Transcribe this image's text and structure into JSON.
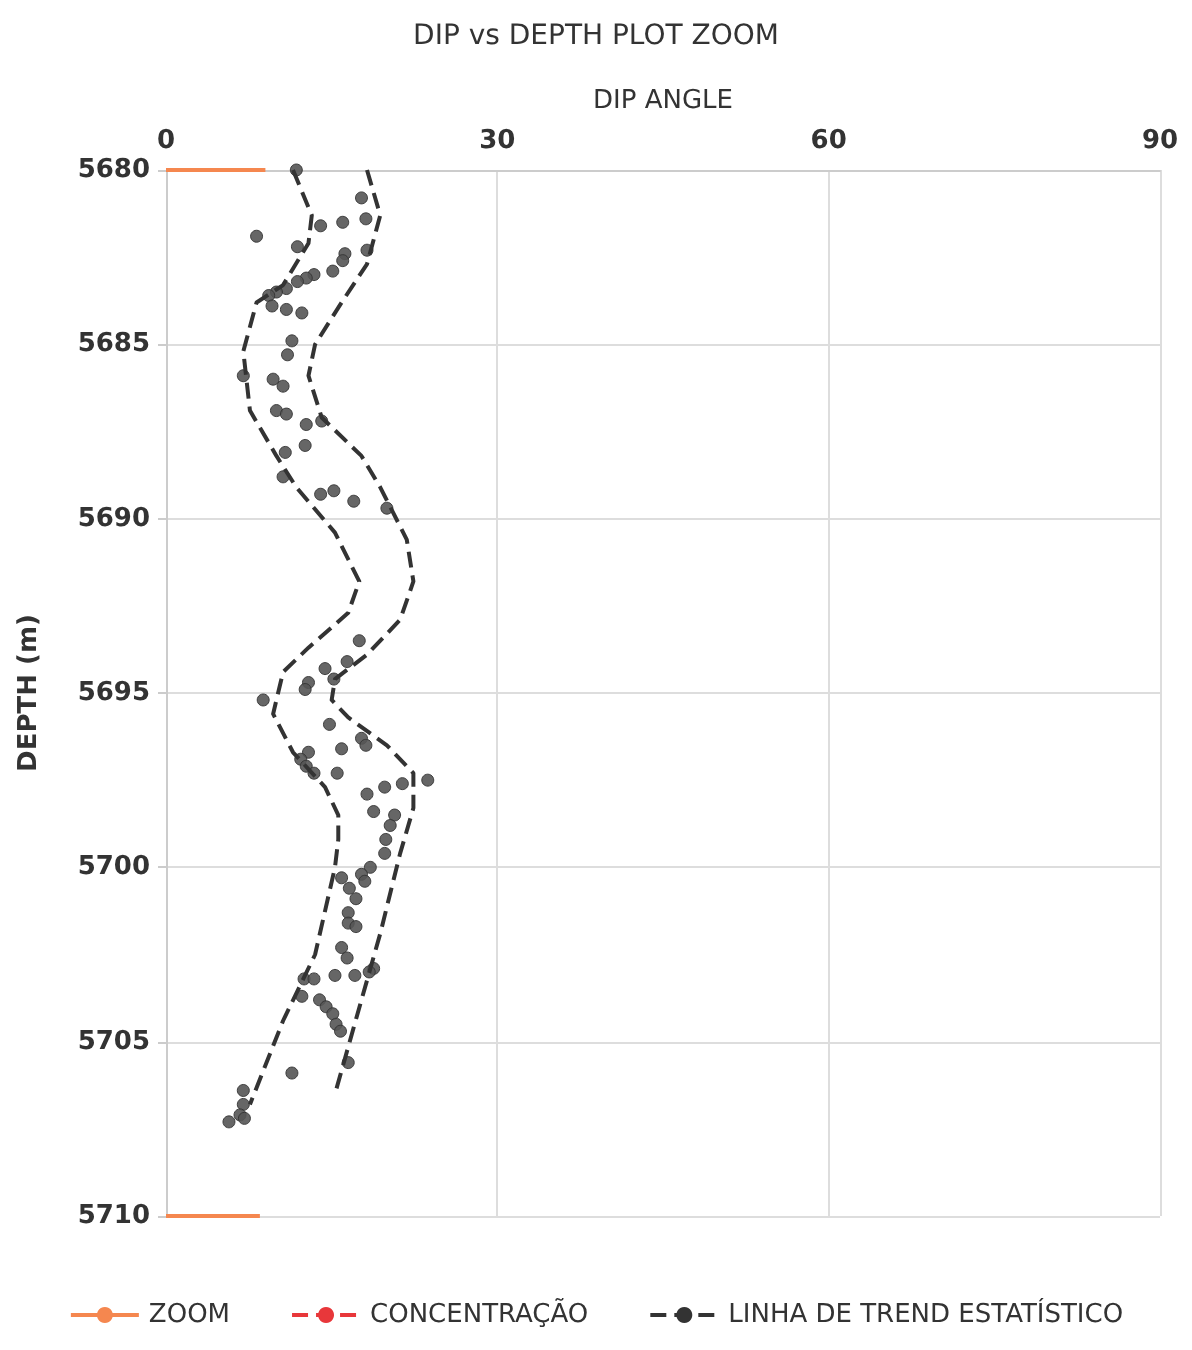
{
  "chart_data": {
    "type": "scatter",
    "title": "DIP vs DEPTH PLOT ZOOM",
    "xlabel": "DIP ANGLE",
    "ylabel": "DEPTH (m)",
    "xlim": [
      0,
      90
    ],
    "xticks": [
      0,
      30,
      60,
      90
    ],
    "ylim": [
      5710,
      5680
    ],
    "yticks": [
      5680,
      5685,
      5690,
      5695,
      5700,
      5705,
      5710
    ],
    "grid": true,
    "legend": "bottom",
    "series": [
      {
        "marker": "circle",
        "color": "#555555",
        "x": [
          11.8,
          17.7,
          18.1,
          16.0,
          14.0,
          8.2,
          11.9,
          18.2,
          16.2,
          16.0,
          15.1,
          13.4,
          12.7,
          11.9,
          10.9,
          10.0,
          9.3,
          9.6,
          10.9,
          12.3,
          11.4,
          11.0,
          7.0,
          9.7,
          10.6,
          10.0,
          10.9,
          12.7,
          14.1,
          12.6,
          10.8,
          10.6,
          14.0,
          15.2,
          17.0,
          20.0,
          17.5,
          16.4,
          14.4,
          15.2,
          12.9,
          12.6,
          8.8,
          14.8,
          17.7,
          18.1,
          15.9,
          12.9,
          12.2,
          12.7,
          13.4,
          15.5,
          23.7,
          21.4,
          19.8,
          18.2,
          18.8,
          20.7,
          20.3,
          19.9,
          19.8,
          18.5,
          17.7,
          15.9,
          18.0,
          16.6,
          17.2,
          16.5,
          16.5,
          17.2,
          15.9,
          16.4,
          18.8,
          18.4,
          17.1,
          15.3,
          12.5,
          13.4,
          12.3,
          13.9,
          14.5,
          15.1,
          15.4,
          15.8,
          11.4,
          16.5,
          7.0,
          7.0,
          6.7,
          5.7,
          7.1
        ],
        "values": [
          5680.0,
          5680.8,
          5681.4,
          5681.5,
          5681.6,
          5681.9,
          5682.2,
          5682.3,
          5682.4,
          5682.6,
          5682.9,
          5683.0,
          5683.1,
          5683.2,
          5683.4,
          5683.5,
          5683.6,
          5683.9,
          5684.0,
          5684.1,
          5684.9,
          5685.3,
          5685.9,
          5686.0,
          5686.2,
          5686.9,
          5687.0,
          5687.3,
          5687.2,
          5687.9,
          5688.1,
          5688.8,
          5689.3,
          5689.2,
          5689.5,
          5689.7,
          5693.5,
          5694.1,
          5694.3,
          5694.6,
          5694.7,
          5694.9,
          5695.2,
          5695.9,
          5696.3,
          5696.5,
          5696.6,
          5696.7,
          5696.9,
          5697.1,
          5697.3,
          5697.3,
          5697.5,
          5697.6,
          5697.7,
          5697.9,
          5698.4,
          5698.5,
          5698.8,
          5699.2,
          5699.6,
          5700.0,
          5700.2,
          5700.3,
          5700.4,
          5700.6,
          5700.9,
          5701.3,
          5701.6,
          5701.7,
          5702.3,
          5702.6,
          5702.9,
          5703.0,
          5703.1,
          5703.1,
          5703.2,
          5703.2,
          5703.7,
          5703.8,
          5704.0,
          5704.2,
          5704.5,
          5704.7,
          5705.9,
          5705.6,
          5706.4,
          5706.8,
          5707.1,
          5707.3,
          5707.2
        ]
      },
      {
        "type": "line",
        "name": "ZOOM",
        "color": "#f5874f",
        "line_style": "solid",
        "x": [
          0,
          9,
          null,
          0,
          8.5
        ],
        "values": [
          5680,
          5680,
          null,
          5710,
          5710
        ]
      },
      {
        "type": "line",
        "name": "CONCENTRAÇÃO",
        "color": "#e8373a",
        "line_style": "dashed"
      },
      {
        "type": "line",
        "name": "LINHA DE TREND ESTATÍSTICO",
        "color": "#333333",
        "line_style": "dashed",
        "x": [
          11.5,
          13.2,
          12.9,
          10.6,
          8.2,
          7.0,
          7.6,
          10.0,
          11.8,
          15.3,
          17.5,
          16.5,
          12.9,
          10.6,
          9.7,
          11.5,
          14.4,
          15.6,
          15.6,
          15.3,
          13.5,
          10.6,
          7.6,
          null,
          18.2,
          19.4,
          18.2,
          15.9,
          13.5,
          12.9,
          14.1,
          17.7,
          19.4,
          21.8,
          22.4,
          21.2,
          18.2,
          15.3,
          15.0,
          16.5,
          20.0,
          22.4,
          22.4,
          21.2,
          19.4,
          17.7,
          15.3
        ],
        "values": [
          5680,
          5681.3,
          5682.1,
          5683.3,
          5683.8,
          5685.2,
          5686.9,
          5688.2,
          5689.1,
          5690.4,
          5691.8,
          5692.7,
          5693.7,
          5694.4,
          5695.6,
          5696.7,
          5697.7,
          5698.5,
          5699.2,
          5700.0,
          5702.5,
          5704.4,
          5706.8,
          null,
          5680,
          5681.3,
          5682.7,
          5683.8,
          5685.0,
          5685.9,
          5687.1,
          5688.2,
          5689.1,
          5690.6,
          5691.8,
          5692.9,
          5693.9,
          5694.6,
          5695.2,
          5695.7,
          5696.5,
          5697.3,
          5698.3,
          5699.6,
          5701.9,
          5703.8,
          5706.5
        ]
      }
    ]
  }
}
